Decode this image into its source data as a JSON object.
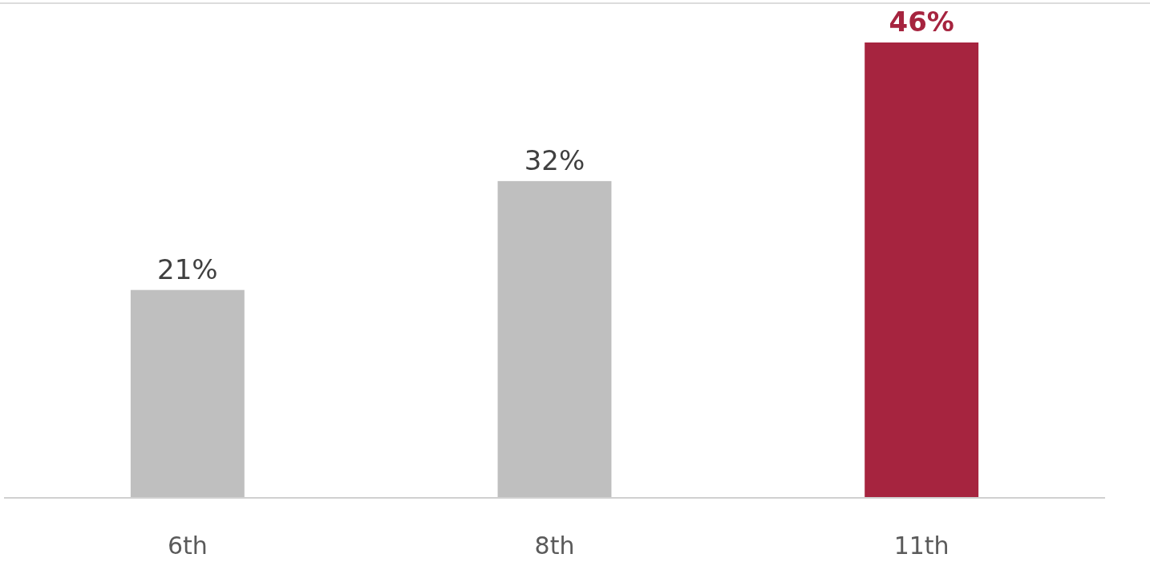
{
  "chart_data": {
    "type": "bar",
    "categories": [
      "6th",
      "8th",
      "11th"
    ],
    "values": [
      21,
      32,
      46
    ],
    "colors": [
      "#bfbfbf",
      "#bfbfbf",
      "#a6243f"
    ],
    "value_labels": [
      "21%",
      "32%",
      "46%"
    ]
  }
}
